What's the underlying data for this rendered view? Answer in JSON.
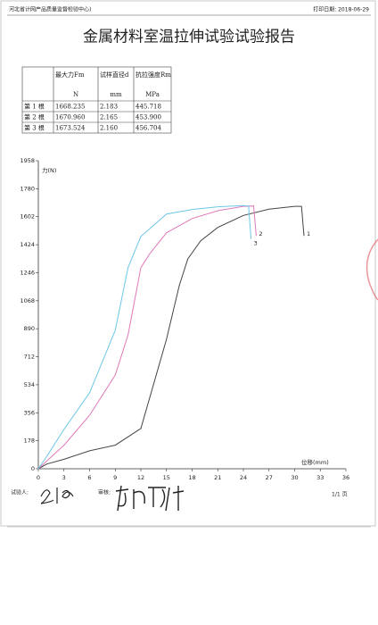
{
  "header": {
    "organization": "河北省计网产品质量监督检验中心)",
    "print_date": "打印日期: 2018-06-29"
  },
  "title": "金属材料室温拉伸试验试验报告",
  "table": {
    "columns": [
      "最大力Fm",
      "试样直径d",
      "抗拉强度Rm"
    ],
    "units": [
      "N",
      "mm",
      "MPa"
    ],
    "rows": [
      [
        "第 1 根",
        "1668.235",
        "2.183",
        "445.718"
      ],
      [
        "第 2 根",
        "1670.960",
        "2.165",
        "453.900"
      ],
      [
        "第 3 根",
        "1673.524",
        "2.160",
        "456.704"
      ]
    ]
  },
  "chart_data": {
    "type": "line",
    "xlabel": "位移(mm)",
    "ylabel": "力(N)",
    "xlim": [
      0,
      36
    ],
    "ylim": [
      0,
      1958
    ],
    "xticks": [
      0,
      3,
      6,
      9,
      12,
      15,
      18,
      21,
      24,
      27,
      30,
      33,
      36
    ],
    "yticks": [
      0,
      178,
      356,
      534,
      712,
      890,
      1068,
      1246,
      1424,
      1602,
      1780,
      1958
    ],
    "series": [
      {
        "name": "1",
        "color": "#444444",
        "x": [
          0,
          1,
          3,
          6,
          9,
          12,
          13.5,
          15,
          16.5,
          17.5,
          19,
          21,
          24,
          27,
          30,
          30.8,
          31.1
        ],
        "values": [
          0,
          30,
          60,
          114,
          150,
          256,
          540,
          824,
          1165,
          1335,
          1449,
          1534,
          1610,
          1650,
          1668,
          1668,
          1480
        ]
      },
      {
        "name": "2",
        "color": "#e07ab8",
        "x": [
          0,
          1,
          3,
          6,
          9,
          10.5,
          12,
          13,
          15,
          18,
          21,
          24,
          25.2,
          25.5
        ],
        "values": [
          0,
          50,
          150,
          340,
          596,
          850,
          1278,
          1364,
          1500,
          1590,
          1640,
          1668,
          1670,
          1480
        ]
      },
      {
        "name": "3",
        "color": "#6cc6e8",
        "x": [
          0,
          1,
          3,
          6,
          9,
          10.5,
          12,
          15,
          18,
          21,
          24,
          24.6,
          24.9
        ],
        "values": [
          0,
          80,
          250,
          483,
          880,
          1278,
          1477,
          1619,
          1648,
          1665,
          1673,
          1670,
          1460
        ]
      }
    ]
  },
  "footer": {
    "tester": "试验人:",
    "reviewer": "审核:",
    "page": "1/1 页"
  }
}
